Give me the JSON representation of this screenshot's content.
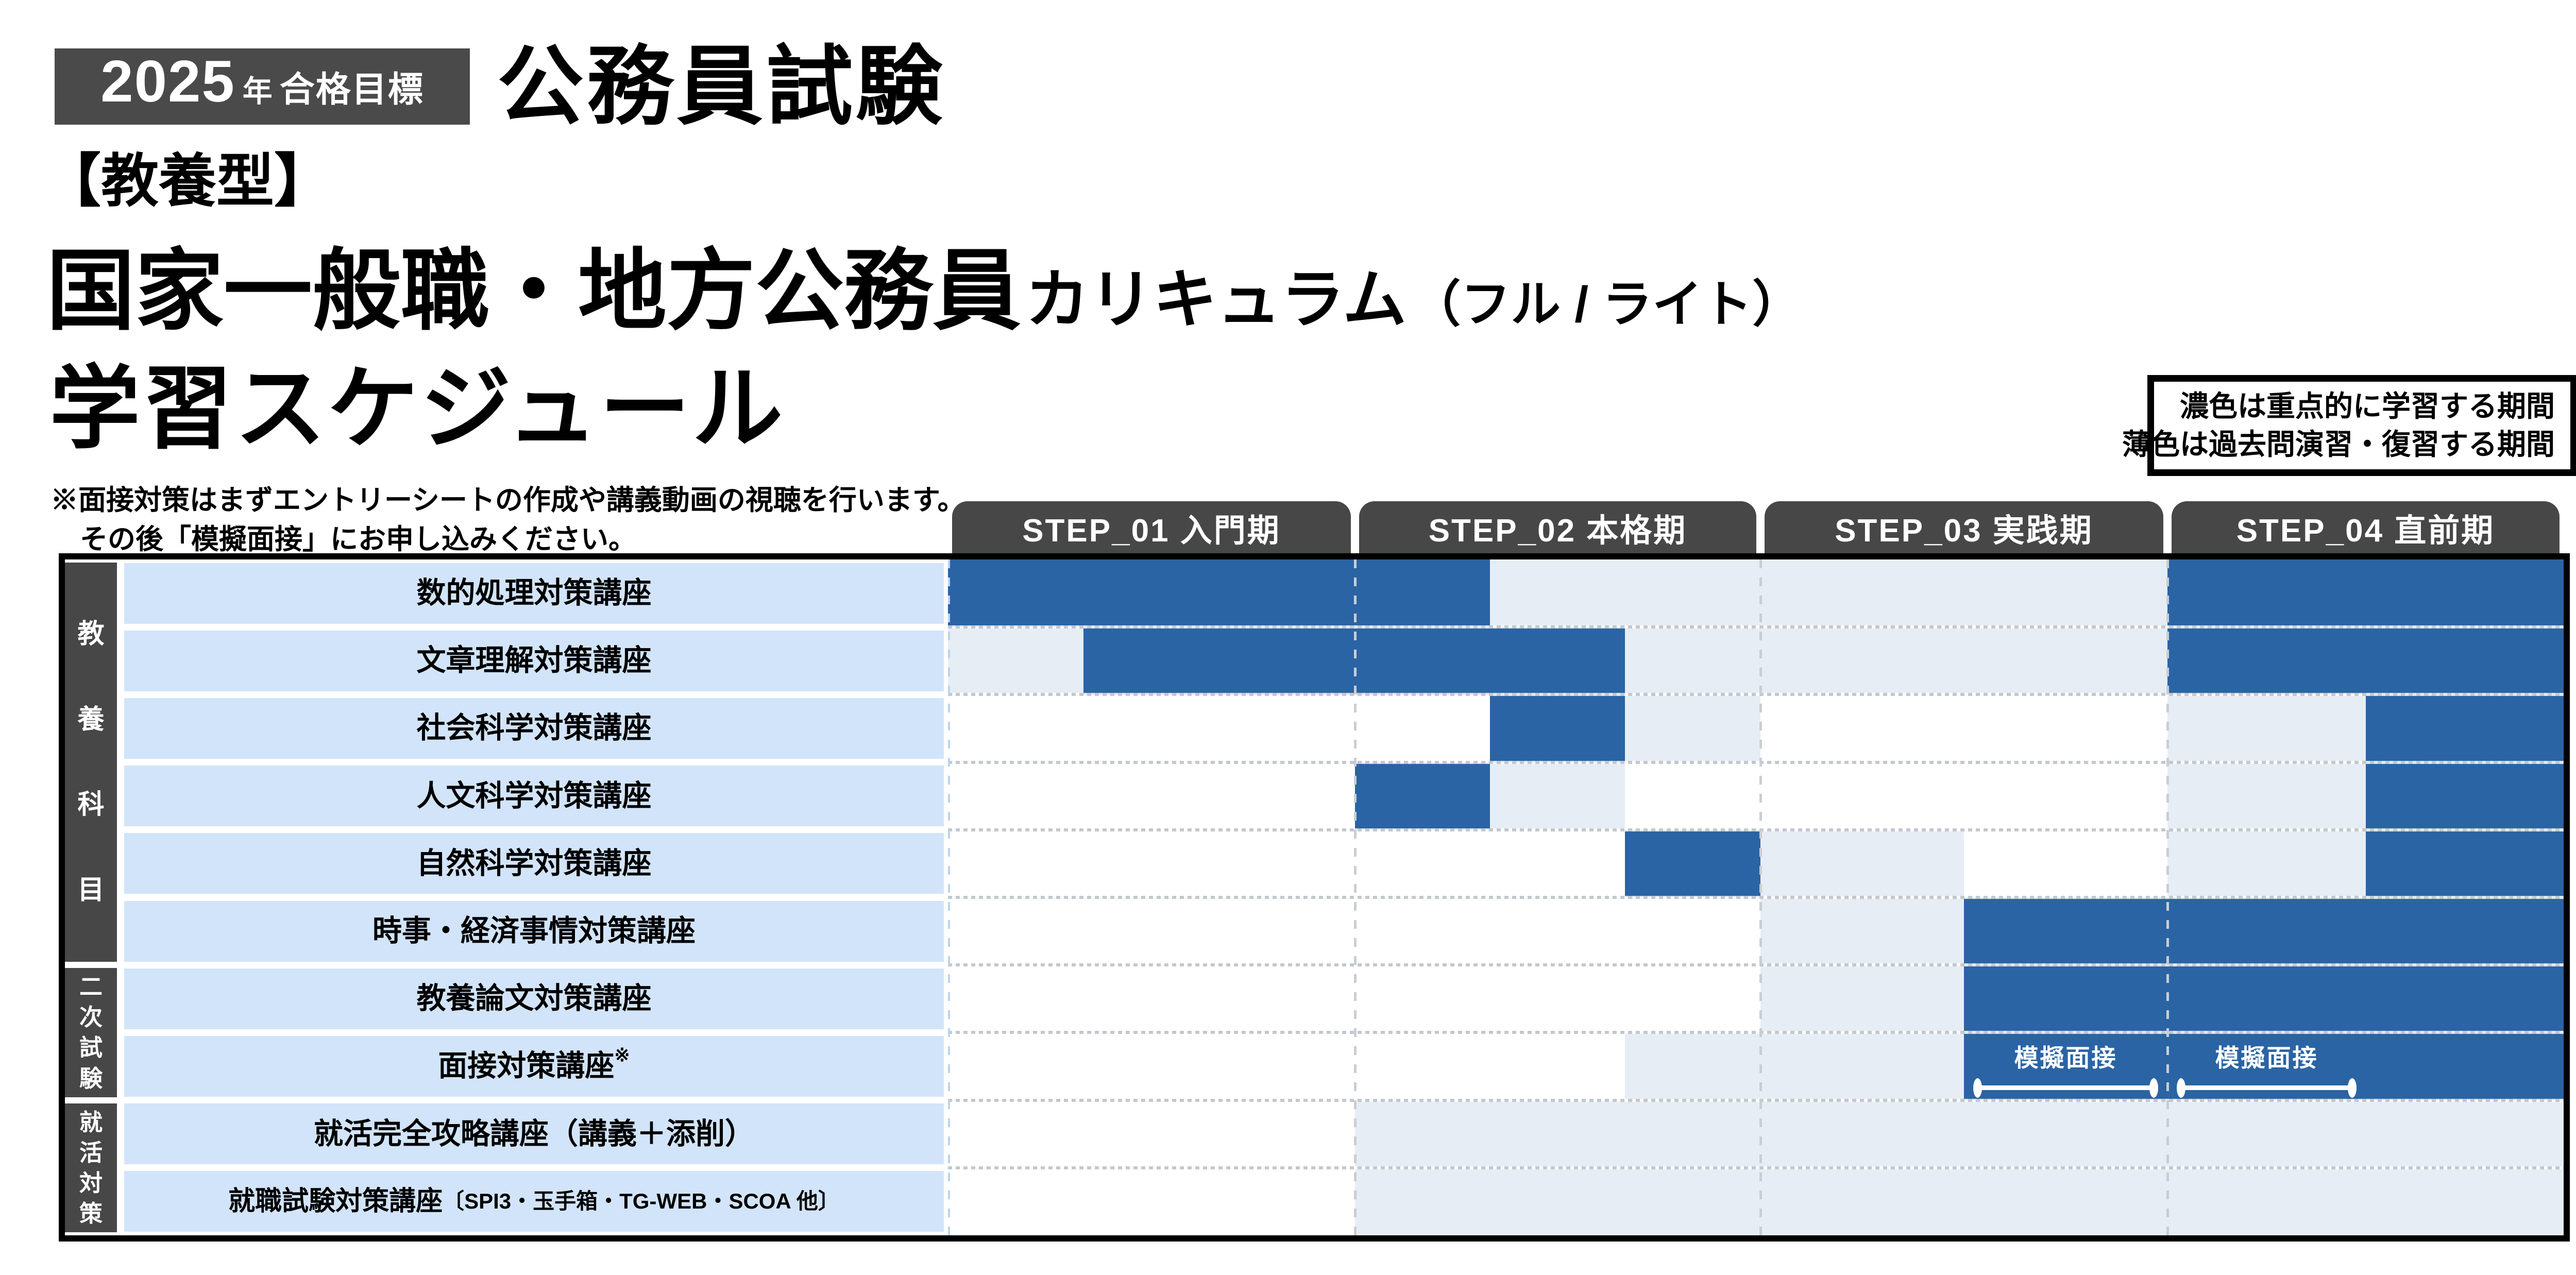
{
  "page": {
    "badge": {
      "year": "2025",
      "unit": "年",
      "goal": "合格目標"
    },
    "exam_title": "公務員試験",
    "category": "【教養型】",
    "course": {
      "main": "国家一般職・地方公務員",
      "suffix": "カリキュラム",
      "variant": "（フル / ライト）"
    },
    "schedule_title": "学習スケジュール",
    "note": {
      "line1": "※面接対策はまずエントリーシートの作成や講義動画の視聴を行います。",
      "line2": "その後「模擬面接」にお申し込みください。"
    },
    "legend": {
      "line1": "濃色は重点的に学習する期間",
      "line2": "薄色は過去問演習・復習する期間"
    }
  },
  "colors": {
    "dark": "#2a64a4",
    "light": "#e7edf5",
    "label_bg": "#d2e4f9",
    "header_bg": "#474747",
    "badge_bg": "#4a4a4a",
    "border": "#000000"
  },
  "chart_data": {
    "type": "table",
    "title": "学習スケジュール",
    "legend": {
      "dark": "濃色は重点的に学習する期間",
      "light": "薄色は過去問演習・復習する期間"
    },
    "steps": [
      {
        "label": "STEP_01 入門期",
        "subcolumns": 3
      },
      {
        "label": "STEP_02 本格期",
        "subcolumns": 3
      },
      {
        "label": "STEP_03 実践期",
        "subcolumns": 2
      },
      {
        "label": "STEP_04 直前期",
        "subcolumns": 2
      }
    ],
    "groups": [
      {
        "label": "教養科目",
        "row_start": 0,
        "row_end": 5
      },
      {
        "label": "二次試験",
        "row_start": 6,
        "row_end": 7
      },
      {
        "label": "就活対策",
        "row_start": 8,
        "row_end": 9
      }
    ],
    "rows": [
      {
        "label": "数的処理対策講座",
        "cells": [
          "dark",
          "dark",
          "dark",
          "dark",
          "light",
          "light",
          "light",
          "light",
          "dark",
          "dark"
        ]
      },
      {
        "label": "文章理解対策講座",
        "cells": [
          "light",
          "dark",
          "dark",
          "dark",
          "dark",
          "light",
          "light",
          "light",
          "dark",
          "dark"
        ]
      },
      {
        "label": "社会科学対策講座",
        "cells": [
          "none",
          "none",
          "none",
          "none",
          "dark",
          "light",
          "none",
          "none",
          "light",
          "dark"
        ]
      },
      {
        "label": "人文科学対策講座",
        "cells": [
          "none",
          "none",
          "none",
          "dark",
          "light",
          "none",
          "none",
          "none",
          "light",
          "dark"
        ]
      },
      {
        "label": "自然科学対策講座",
        "cells": [
          "none",
          "none",
          "none",
          "none",
          "none",
          "dark",
          "light",
          "none",
          "light",
          "dark"
        ]
      },
      {
        "label": "時事・経済事情対策講座",
        "cells": [
          "none",
          "none",
          "none",
          "none",
          "none",
          "none",
          "light",
          "dark",
          "dark",
          "dark"
        ]
      },
      {
        "label": "教養論文対策講座",
        "cells": [
          "none",
          "none",
          "none",
          "none",
          "none",
          "none",
          "light",
          "dark",
          "dark",
          "dark"
        ]
      },
      {
        "label": "面接対策講座",
        "label_sup": "※",
        "cells": [
          "none",
          "none",
          "none",
          "none",
          "none",
          "light",
          "light",
          "dark",
          "dark",
          "dark"
        ]
      },
      {
        "label": "就活完全攻略講座（講義＋添削）",
        "cells": [
          "none",
          "none",
          "none",
          "light",
          "light",
          "light",
          "light",
          "light",
          "light",
          "light"
        ]
      },
      {
        "label": "就職試験対策講座",
        "label_small": "〔SPI3・玉手箱・TG-WEB・SCOA 他〕",
        "cells": [
          "none",
          "none",
          "none",
          "light",
          "light",
          "light",
          "light",
          "light",
          "light",
          "light"
        ]
      }
    ],
    "annotations": [
      {
        "row": 7,
        "subcolumn": 7,
        "label": "模擬面接"
      },
      {
        "row": 7,
        "subcolumn": 8,
        "label": "模擬面接"
      }
    ]
  }
}
